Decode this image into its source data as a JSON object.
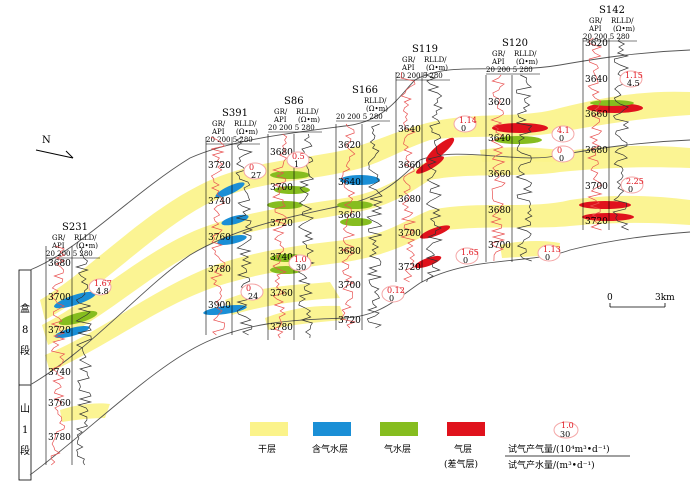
{
  "north": "N",
  "colors": {
    "dry": "#fbf38a",
    "gaswater": "#1a8fd6",
    "water": "#86bd1f",
    "gas": "#e0121c",
    "bubble": "#f4a6a6",
    "grlog": "#e85050",
    "rlog": "#333333"
  },
  "strat": {
    "upper": [
      "盒",
      "8",
      "段"
    ],
    "lower": [
      "山",
      "1",
      "段"
    ]
  },
  "wells": [
    {
      "name": "S231",
      "hdr_a": "GR/",
      "hdr_b": "RLLD/",
      "hdr_c": "API",
      "hdr_d": "(Ω•m)",
      "scale": "20 200 5 280",
      "depths": [
        "3680",
        "3700",
        "3720",
        "3740",
        "3760",
        "3780"
      ],
      "tests": [
        {
          "top": "1.67",
          "bot": "4.8"
        }
      ]
    },
    {
      "name": "S391",
      "hdr_a": "GR/",
      "hdr_b": "RLLD/",
      "hdr_c": "API",
      "hdr_d": "(Ω•m)",
      "scale": "20 200 5 280",
      "depths": [
        "3720",
        "3740",
        "3760",
        "3780",
        "3900"
      ],
      "tests": [
        {
          "top": "0",
          "bot": "27"
        },
        {
          "top": "0",
          "bot": "24"
        }
      ]
    },
    {
      "name": "S86",
      "hdr_a": "GR/",
      "hdr_b": "RLLD/",
      "hdr_c": "API",
      "hdr_d": "(Ω•m)",
      "scale": "20 200 5 280",
      "depths": [
        "3680",
        "3700",
        "3720",
        "3740",
        "3760",
        "3780"
      ],
      "tests": [
        {
          "top": "0.5",
          "bot": "1"
        },
        {
          "top": "1.0",
          "bot": "30"
        }
      ]
    },
    {
      "name": "S166",
      "hdr_a": "",
      "hdr_b": "RLLD/",
      "hdr_c": "",
      "hdr_d": "(Ω•m)",
      "scale": "20 200 5 280",
      "depths": [
        "3620",
        "3640",
        "3660",
        "3680",
        "3700",
        "3720"
      ],
      "tests": [
        {
          "top": "0.12",
          "bot": "0"
        }
      ]
    },
    {
      "name": "S119",
      "hdr_a": "GR/",
      "hdr_b": "RLLD/",
      "hdr_c": "API",
      "hdr_d": "(Ω•m)",
      "scale": "20 200 5 280",
      "depths": [
        "3640",
        "3660",
        "3680",
        "3700",
        "3720"
      ],
      "tests": [
        {
          "top": "1.14",
          "bot": "0"
        },
        {
          "top": "1.65",
          "bot": "0"
        }
      ]
    },
    {
      "name": "S120",
      "hdr_a": "GR/",
      "hdr_b": "RLLD/",
      "hdr_c": "API",
      "hdr_d": "(Ω•m)",
      "scale": "20 200 5 280",
      "depths": [
        "3620",
        "3640",
        "3660",
        "3680",
        "3700"
      ],
      "tests": [
        {
          "top": "4.1",
          "bot": "0"
        },
        {
          "top": "0",
          "bot": "0"
        },
        {
          "top": "1.13",
          "bot": "0"
        }
      ]
    },
    {
      "name": "S142",
      "hdr_a": "GR/",
      "hdr_b": "RLLD/",
      "hdr_c": "API",
      "hdr_d": "(Ω•m)",
      "scale": "20 200 5 280",
      "depths": [
        "3620",
        "3640",
        "3660",
        "3680",
        "3700",
        "3720"
      ],
      "tests": [
        {
          "top": "1.15",
          "bot": "4.5"
        },
        {
          "top": "2.25",
          "bot": "0"
        }
      ]
    }
  ],
  "scalebar": {
    "start": "0",
    "end": "3km"
  },
  "legend": {
    "items": [
      {
        "label": "干层",
        "color_key": "dry"
      },
      {
        "label": "含气水层",
        "color_key": "gaswater"
      },
      {
        "label": "气水层",
        "color_key": "water"
      },
      {
        "label": "气层",
        "label2": "(差气层)",
        "color_key": "gas"
      }
    ],
    "sample_top": "1.0",
    "sample_bot": "30",
    "rate_gas": "试气产气量/(10⁴m³•d⁻¹)",
    "rate_water": "试气产水量/(m³•d⁻¹)"
  }
}
